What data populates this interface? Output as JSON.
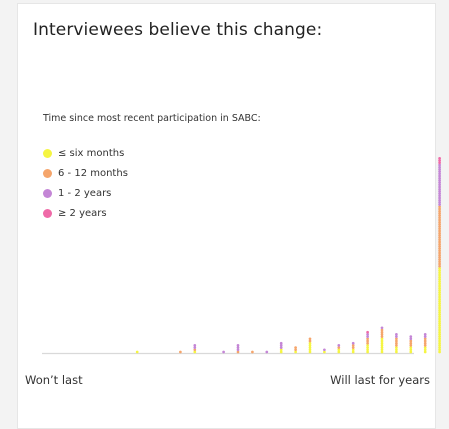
{
  "header": {
    "title": "Interviewees believe this change:"
  },
  "legend": {
    "title": "Time since most recent participation in SABC:",
    "items": [
      {
        "label": "≤ six months",
        "color": "#f5f542"
      },
      {
        "label": "6 - 12 months",
        "color": "#f5a56b"
      },
      {
        "label": "1 - 2 years",
        "color": "#c486d6"
      },
      {
        "label": "≥ 2 years",
        "color": "#ef6aa8"
      }
    ]
  },
  "axis": {
    "left_label": "Won’t last",
    "right_label": "Will last for years"
  },
  "chart_data": {
    "type": "bar",
    "stacked": true,
    "x_positions": [
      1,
      2,
      3,
      4,
      5,
      6,
      7,
      8,
      9,
      10,
      11,
      12,
      13,
      14,
      15,
      16,
      17,
      18,
      19,
      20,
      21,
      22,
      23,
      24,
      25
    ],
    "series": [
      {
        "name": "≤ six months",
        "color": "#f5f542",
        "values": [
          0,
          0,
          0,
          1,
          0,
          0,
          0,
          1,
          0,
          0,
          0,
          0,
          0,
          2,
          1,
          5,
          1,
          2,
          2,
          4,
          7,
          3,
          3,
          3,
          39
        ]
      },
      {
        "name": "6 - 12 months",
        "color": "#f5a56b",
        "values": [
          0,
          0,
          0,
          0,
          0,
          0,
          1,
          1,
          0,
          0,
          1,
          1,
          0,
          0,
          2,
          2,
          0,
          1,
          2,
          3,
          4,
          4,
          3,
          4,
          28
        ]
      },
      {
        "name": "1 - 2 years",
        "color": "#c486d6",
        "values": [
          0,
          0,
          0,
          0,
          0,
          0,
          0,
          2,
          0,
          1,
          3,
          0,
          1,
          3,
          0,
          0,
          1,
          1,
          1,
          2,
          1,
          2,
          2,
          2,
          19
        ]
      },
      {
        "name": "≥ 2 years",
        "color": "#ef6aa8",
        "values": [
          0,
          0,
          0,
          0,
          0,
          0,
          0,
          0,
          0,
          0,
          0,
          0,
          0,
          0,
          0,
          0,
          0,
          0,
          0,
          1,
          0,
          0,
          0,
          0,
          3
        ]
      }
    ],
    "xlabel": "",
    "ylabel": ""
  }
}
